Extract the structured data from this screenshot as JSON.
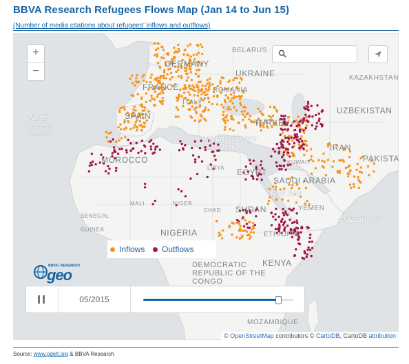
{
  "title": "BBVA Research Refugees Flows Map (Jan 14 to Jun 15)",
  "subtitle": "(Number of media citations about refugees' inflows and outflows)",
  "map": {
    "labels": {
      "belarus": "BELARUS",
      "germany": "GERMANY",
      "ukraine": "UKRAINE",
      "kazakhstan": "KAZAKHSTAN",
      "france": "FRANCE",
      "romania": "ROMANIA",
      "uzbekistan": "UZBEKISTAN",
      "spain": "SPAIN",
      "italy": "ITALY",
      "turkey": "TURKEY",
      "north_atlantic_ocean": "North Atlantic Ocean",
      "mediterranean_sea": "Mediterranean Sea",
      "iran": "IRAN",
      "morocco": "MOROCCO",
      "kuwait": "KUWAIT",
      "pakistan": "PAKISTAN",
      "libya": "LIBYA",
      "egypt": "EGYPT",
      "saudi_arabia": "SAUDI ARABIA",
      "red_sea": "Red Sea",
      "mali": "MALI",
      "niger": "NIGER",
      "chad": "CHAD",
      "sudan": "SUDAN",
      "yemen": "YEMEN",
      "arabian_sea": "Arabian Sea",
      "senegal": "SENEGAL",
      "guinea": "GUINEA",
      "nigeria": "NIGERIA",
      "ethiopia": "ETHIOPIA",
      "kenya": "KENYA",
      "drc": "DEMOCRATIC REPUBLIC OF THE CONGO",
      "mozambique": "MOZAMBIQUE"
    },
    "zoom_in": "+",
    "zoom_out": "−",
    "search_placeholder": "",
    "legend": {
      "inflows_label": "Inflows",
      "outflows_label": "Outflows",
      "inflows_color": "#f7941d",
      "outflows_color": "#a3164a"
    },
    "logo": {
      "sub": "BBVA | RESEARCH",
      "word": "geo"
    },
    "timeline": {
      "date": "05/2015",
      "progress": 0.9
    },
    "attribution": {
      "prefix": "© ",
      "osm": "OpenStreetMap",
      "mid": " contributors © ",
      "cartodb": "CartoDB",
      "sep": ", CartoDB ",
      "attr": "attribution"
    }
  },
  "source": {
    "prefix": "Source: ",
    "gdelt": "www.gdelt.org",
    "suffix": " & BBVA Research"
  }
}
